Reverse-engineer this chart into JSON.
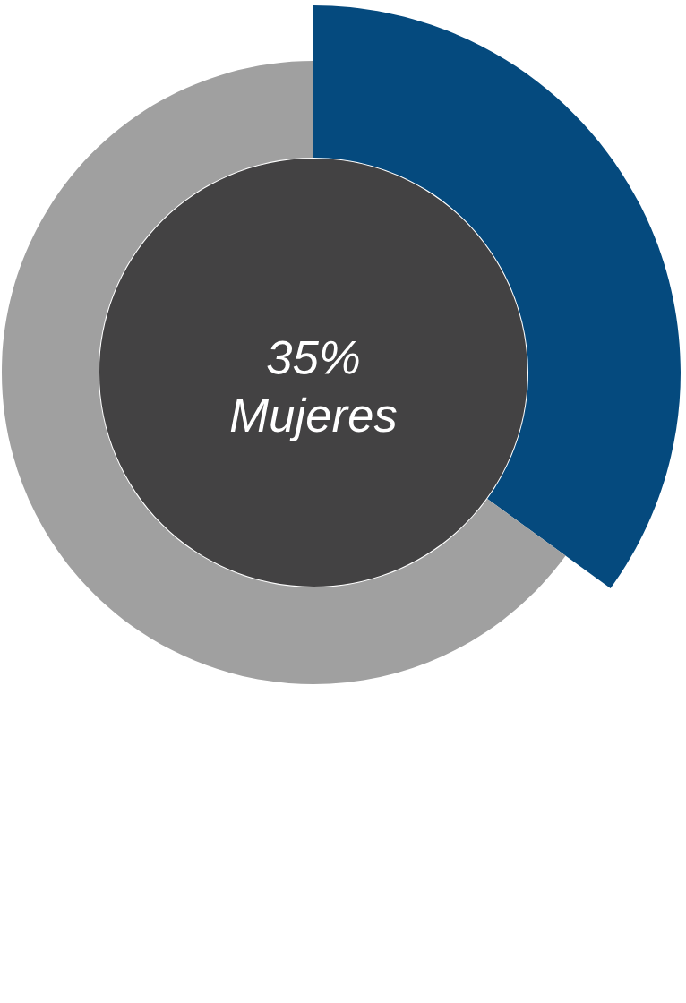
{
  "chart_data": {
    "type": "donut",
    "categories": [
      "Mujeres",
      null
    ],
    "values": [
      35,
      65
    ],
    "value_labels": [
      "35%",
      null
    ],
    "colors": [
      "#054a7e",
      "#a0a0a0"
    ]
  }
}
